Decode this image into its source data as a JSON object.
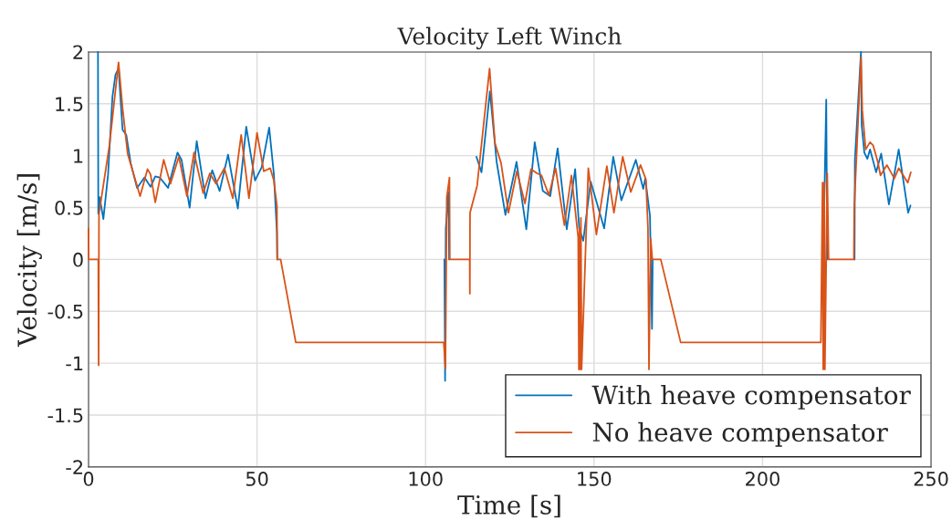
{
  "chart_data": {
    "type": "line",
    "title": "Velocity Left Winch",
    "xlabel": "Time [s]",
    "ylabel": "Velocity [m/s]",
    "xlim": [
      0,
      250
    ],
    "xticks": [
      0,
      50,
      100,
      150,
      200,
      250
    ],
    "ylim": [
      -2,
      2
    ],
    "yticks": [
      -2,
      -1.5,
      -1,
      -0.5,
      0,
      0.5,
      1,
      1.5,
      2
    ],
    "grid": true,
    "legend": "bottom right",
    "line_style": "solid",
    "marker": "none",
    "series": [
      {
        "name": "With heave compensator",
        "color": "#0072bd",
        "x": [
          2.8,
          2.9,
          3.3,
          4.4,
          5.8,
          7.1,
          8.0,
          8.9,
          10.1,
          11.2,
          12.5,
          14.4,
          16.6,
          18.4,
          19.8,
          21.1,
          23.6,
          26.4,
          27.6,
          30.0,
          32.1,
          34.7,
          36.7,
          38.9,
          41.4,
          44.3,
          46.8,
          49.4,
          51.4,
          53.6,
          55.0,
          55.9,
          56.0,
          80,
          105.6,
          105.8,
          106.0,
          106.8,
          107.0,
          110,
          113.1,
          113.3,
          115.1,
          116.6,
          119.1,
          121.1,
          123.7,
          127.0,
          129.9,
          132.4,
          134.8,
          137.0,
          139.2,
          141.9,
          144.4,
          145.6,
          146.8,
          149.0,
          153.0,
          155.7,
          158.1,
          162.4,
          164.6,
          165.2,
          166.6,
          167.2,
          167.4,
          190,
          218.0,
          218.9,
          219.2,
          220,
          227.3,
          227.4,
          229.2,
          229.4,
          230.2,
          231.1,
          231.9,
          233.7,
          235.2,
          237.5,
          240.4,
          243.2,
          243.9
        ],
        "values": [
          2.0,
          0.44,
          0.6,
          0.39,
          0.82,
          1.57,
          1.78,
          1.84,
          1.25,
          1.2,
          0.93,
          0.69,
          0.79,
          0.7,
          0.8,
          0.79,
          0.69,
          1.03,
          0.96,
          0.5,
          1.14,
          0.59,
          0.86,
          0.66,
          1.01,
          0.49,
          1.28,
          0.76,
          0.89,
          1.27,
          0.82,
          0.26,
          0,
          null,
          0,
          -1.17,
          0.3,
          0.65,
          0,
          null,
          null,
          null,
          0.99,
          0.84,
          1.62,
          0.94,
          0.43,
          0.94,
          0.29,
          1.13,
          0.66,
          0.61,
          1.07,
          0.29,
          0.87,
          0.3,
          0.18,
          0.75,
          0.3,
          0.99,
          0.57,
          0.96,
          0.68,
          0.78,
          0.42,
          -0.67,
          0,
          null,
          0,
          1.54,
          0,
          null,
          0,
          0.96,
          2.0,
          1.3,
          1.03,
          0.97,
          1.06,
          0.84,
          1.02,
          0.53,
          1.06,
          0.45,
          0.52
        ]
      },
      {
        "name": "No heave compensator",
        "color": "#d95319",
        "x": [
          0,
          0.05,
          2.9,
          3.0,
          3.1,
          6.2,
          8.9,
          10.1,
          11.6,
          13.4,
          15.3,
          17.5,
          18.4,
          19.8,
          22.3,
          24.3,
          26.8,
          29.2,
          31.3,
          34.0,
          36.0,
          37.8,
          40.3,
          42.8,
          45.3,
          47.6,
          50.0,
          52.0,
          53.9,
          55.0,
          55.9,
          56.0,
          57.0,
          61.5,
          105.4,
          105.9,
          106.3,
          107.1,
          107.2,
          113.1,
          113.15,
          113.2,
          115.3,
          119.0,
          120.6,
          122.4,
          124.6,
          127.1,
          129.5,
          131.3,
          133.1,
          134.4,
          136.6,
          138.6,
          141.2,
          143.3,
          145.3,
          145.5,
          145.7,
          145.9,
          146.1,
          146.3,
          148.3,
          150.7,
          153.8,
          155.9,
          158.5,
          160.9,
          163.8,
          165.4,
          166.0,
          166.3,
          166.8,
          167.3,
          169.8,
          175.7,
          217.3,
          217.8,
          218.0,
          218.3,
          218.5,
          219.2,
          219.6,
          227.1,
          227.2,
          229.2,
          229.6,
          230.6,
          231.9,
          232.8,
          234.2,
          235.0,
          236.9,
          239.1,
          240.4,
          243.1,
          244.0
        ],
        "values": [
          0.3,
          0,
          0,
          -1.02,
          0.44,
          1.1,
          1.9,
          1.46,
          1.02,
          0.82,
          0.61,
          0.87,
          0.82,
          0.55,
          0.96,
          0.73,
          0.99,
          0.61,
          1.03,
          0.64,
          0.83,
          0.73,
          0.88,
          0.59,
          1.2,
          0.59,
          1.22,
          0.85,
          0.88,
          0.76,
          0.52,
          0,
          0,
          -0.8,
          -0.8,
          -1.05,
          0.6,
          0.79,
          0,
          0,
          -0.33,
          0.45,
          0.71,
          1.84,
          1.12,
          0.93,
          0.45,
          0.85,
          0.54,
          0.87,
          0.83,
          0.81,
          0.62,
          0.88,
          0.33,
          0.81,
          0.21,
          -1.06,
          0.3,
          -1.06,
          0.4,
          -1.06,
          0.88,
          0.24,
          0.9,
          0.45,
          0.99,
          0.65,
          0.91,
          0.77,
          0.3,
          -1.06,
          0.2,
          0,
          0,
          -0.8,
          -0.8,
          0.74,
          -1.06,
          0.74,
          -1.06,
          0.83,
          0,
          0,
          0.5,
          1.95,
          1.44,
          1.06,
          1.13,
          1.1,
          0.94,
          0.81,
          0.91,
          0.78,
          0.88,
          0.74,
          0.84
        ]
      }
    ]
  }
}
